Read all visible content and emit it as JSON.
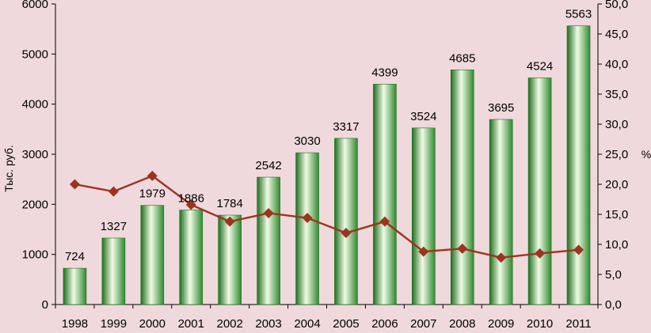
{
  "chart_data": {
    "type": "bar",
    "title": "",
    "categories": [
      "1998",
      "1999",
      "2000",
      "2001",
      "2002",
      "2003",
      "2004",
      "2005",
      "2006",
      "2007",
      "2008",
      "2009",
      "2010",
      "2011"
    ],
    "series": [
      {
        "type": "bar",
        "axis": "left",
        "values": [
          724,
          1327,
          1979,
          1886,
          1784,
          2542,
          3030,
          3317,
          4399,
          3524,
          4685,
          3695,
          4524,
          5563
        ],
        "labels": [
          "724",
          "1327",
          "1979",
          "1886",
          "1784",
          "2542",
          "3030",
          "3317",
          "4399",
          "3524",
          "4685",
          "3695",
          "4524",
          "5563"
        ]
      },
      {
        "type": "line",
        "axis": "right",
        "values": [
          20.0,
          18.8,
          21.4,
          16.6,
          13.8,
          15.2,
          14.4,
          11.9,
          13.8,
          8.8,
          9.3,
          7.8,
          8.5,
          9.1
        ]
      }
    ],
    "ylabel": "Тыс. руб.",
    "ylabel_right": "%",
    "ylim": [
      0,
      6000
    ],
    "ylim_right": [
      0,
      50
    ],
    "yticks": [
      "0",
      "1000",
      "2000",
      "3000",
      "4000",
      "5000",
      "6000"
    ],
    "yticks_right": [
      "0,0",
      "5,0",
      "10,0",
      "15,0",
      "20,0",
      "25,0",
      "30,0",
      "35,0",
      "40,0",
      "45,0",
      "50,0"
    ],
    "grid": false,
    "legend": "none",
    "colors": {
      "background": "#efd9dc",
      "bar_dark": "#1e6f1e",
      "bar_light": "#f2fbe6",
      "line": "#9b3520",
      "axis": "#000000"
    }
  }
}
